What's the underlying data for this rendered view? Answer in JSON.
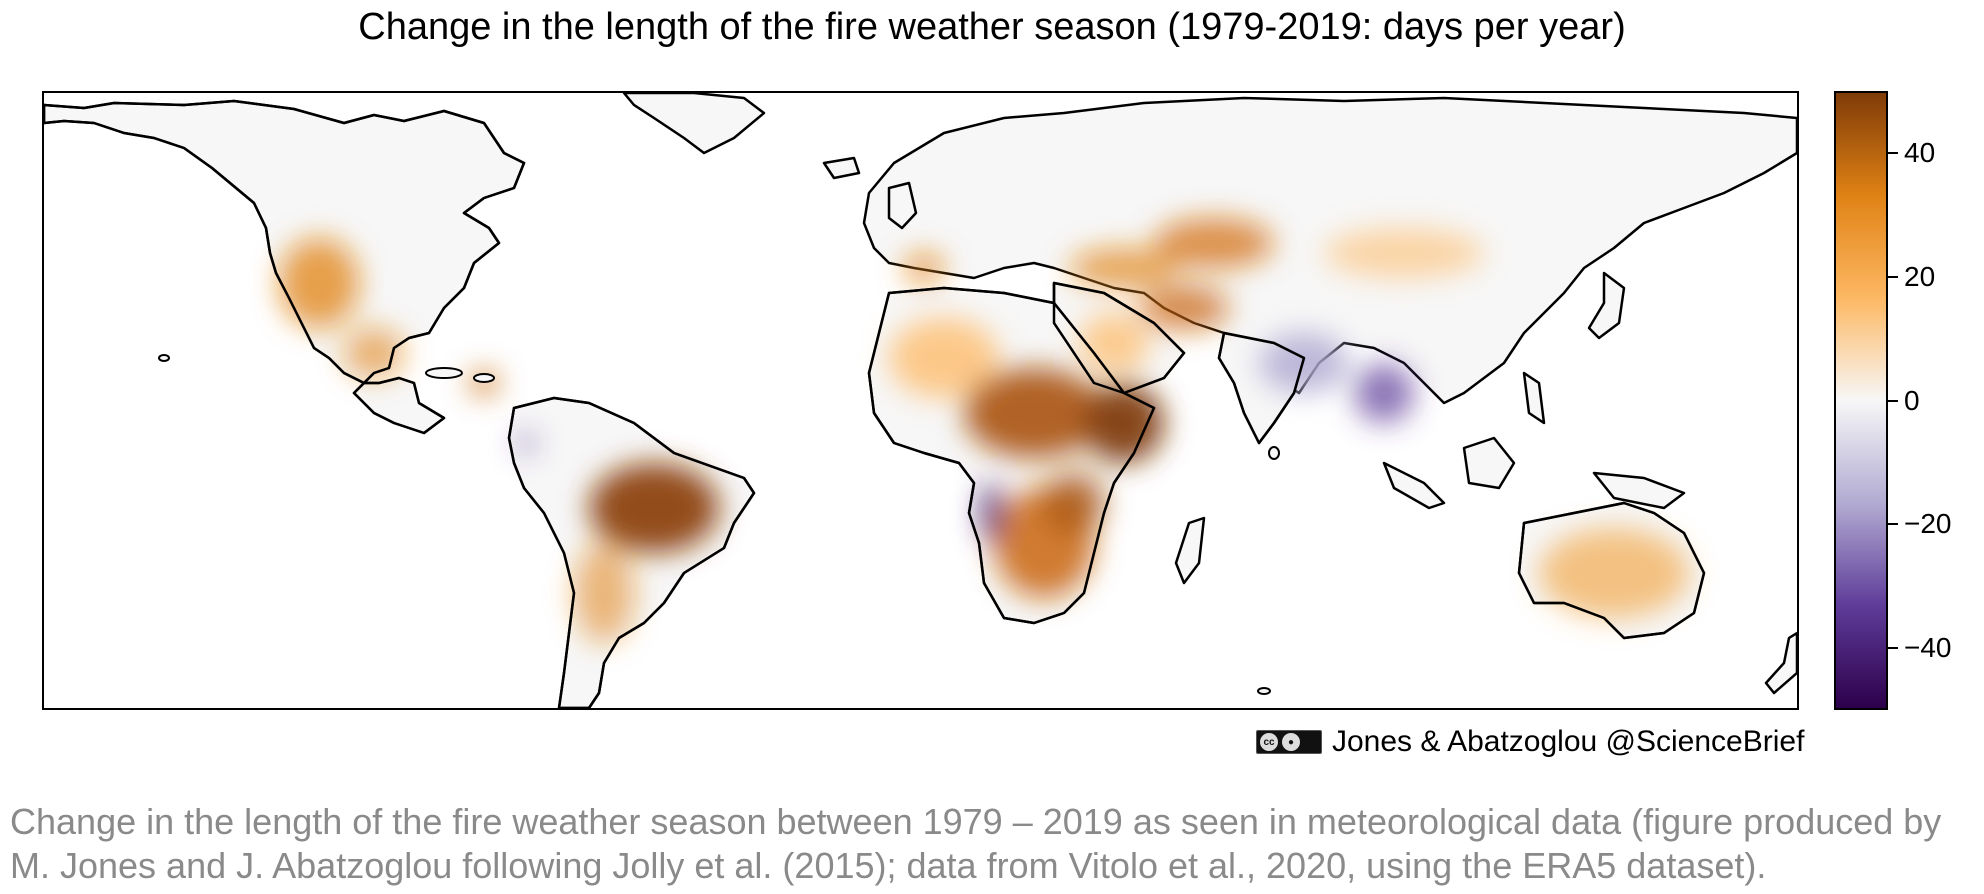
{
  "figure": {
    "title": "Change in the length of the fire weather season (1979-2019: days per year)",
    "credit": "Jones & Abatzoglou @ScienceBrief",
    "license_badge": "cc-by-icon"
  },
  "colorbar": {
    "min": -50,
    "max": 50,
    "ticks": [
      {
        "value": 40,
        "label": "40"
      },
      {
        "value": 20,
        "label": "20"
      },
      {
        "value": 0,
        "label": "0"
      },
      {
        "value": -20,
        "label": "−20"
      },
      {
        "value": -40,
        "label": "−40"
      }
    ],
    "colors": [
      "#2d004b",
      "#5e3c99",
      "#b2abd2",
      "#f7f7f7",
      "#fdb863",
      "#e08214",
      "#7f3b08"
    ]
  },
  "map": {
    "projection": "plate-carree",
    "extent": {
      "lon": [
        -180,
        180
      ],
      "lat": [
        -60,
        78
      ]
    },
    "regions": [
      {
        "name": "Western North America",
        "change": 22
      },
      {
        "name": "Central America",
        "change": 28
      },
      {
        "name": "Amazon / Central Brazil",
        "change": 45
      },
      {
        "name": "Southern South America",
        "change": 20
      },
      {
        "name": "Mediterranean",
        "change": 25
      },
      {
        "name": "Sahel / North Africa",
        "change": 18
      },
      {
        "name": "East Africa / Horn of Africa",
        "change": 45
      },
      {
        "name": "Southern Africa",
        "change": 30
      },
      {
        "name": "Angola coast",
        "change": -30
      },
      {
        "name": "Middle East / Central Asia",
        "change": 25
      },
      {
        "name": "Kazakhstan",
        "change": 30
      },
      {
        "name": "India",
        "change": -15
      },
      {
        "name": "Southeast Asia",
        "change": -25
      },
      {
        "name": "Australia",
        "change": 18
      },
      {
        "name": "Siberia",
        "change": 8
      }
    ]
  },
  "caption": "Change in the length of the fire weather season between 1979 – 2019 as seen in meteorological data (figure produced by M. Jones and J. Abatzoglou following Jolly et al. (2015); data from Vitolo et al., 2020, using the ERA5 dataset)."
}
